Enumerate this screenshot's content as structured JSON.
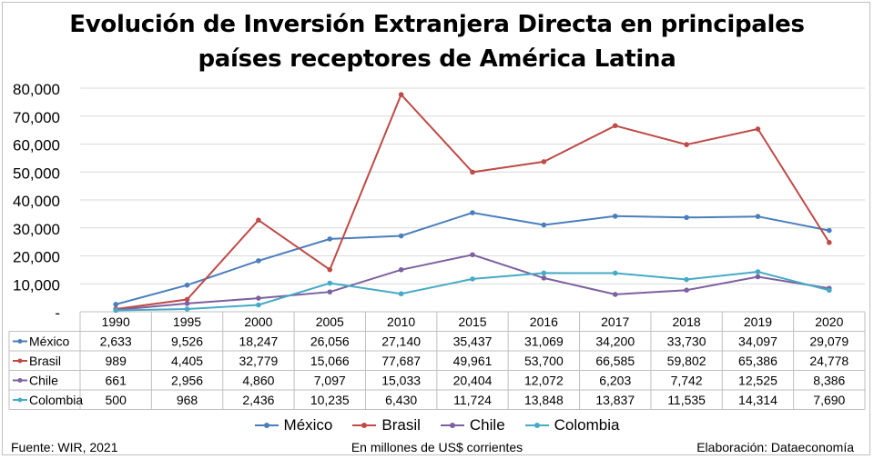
{
  "title_line1": "Evolución de Inversión Extranjera Directa en principales",
  "title_line2": "países receptores de América Latina",
  "footer": {
    "source": "Fuente: WIR, 2021",
    "units": "En millones de US$ corrientes",
    "credit": "Elaboración: Dataeconomía"
  },
  "chart_data": {
    "type": "line",
    "title": "Evolución de Inversión Extranjera Directa en principales países receptores de América Latina",
    "categories": [
      "1990",
      "1995",
      "2000",
      "2005",
      "2010",
      "2015",
      "2016",
      "2017",
      "2018",
      "2019",
      "2020"
    ],
    "ylim": [
      0,
      80000
    ],
    "yticks": [
      "-",
      "10,000",
      "20,000",
      "30,000",
      "40,000",
      "50,000",
      "60,000",
      "70,000",
      "80,000"
    ],
    "grid": true,
    "legend_position": "bottom",
    "data_table": true,
    "series": [
      {
        "name": "México",
        "color": "#4a7ebb",
        "values": [
          2633,
          9526,
          18247,
          26056,
          27140,
          35437,
          31069,
          34200,
          33730,
          34097,
          29079
        ],
        "labels": [
          "2,633",
          "9,526",
          "18,247",
          "26,056",
          "27,140",
          "35,437",
          "31,069",
          "34,200",
          "33,730",
          "34,097",
          "29,079"
        ]
      },
      {
        "name": "Brasil",
        "color": "#be4b48",
        "values": [
          989,
          4405,
          32779,
          15066,
          77687,
          49961,
          53700,
          66585,
          59802,
          65386,
          24778
        ],
        "labels": [
          "989",
          "4,405",
          "32,779",
          "15,066",
          "77,687",
          "49,961",
          "53,700",
          "66,585",
          "59,802",
          "65,386",
          "24,778"
        ]
      },
      {
        "name": "Chile",
        "color": "#7d60a0",
        "values": [
          661,
          2956,
          4860,
          7097,
          15033,
          20404,
          12072,
          6203,
          7742,
          12525,
          8386
        ],
        "labels": [
          "661",
          "2,956",
          "4,860",
          "7,097",
          "15,033",
          "20,404",
          "12,072",
          "6,203",
          "7,742",
          "12,525",
          "8,386"
        ]
      },
      {
        "name": "Colombia",
        "color": "#46aac5",
        "values": [
          500,
          968,
          2436,
          10235,
          6430,
          11724,
          13848,
          13837,
          11535,
          14314,
          7690
        ],
        "labels": [
          "500",
          "968",
          "2,436",
          "10,235",
          "6,430",
          "11,724",
          "13,848",
          "13,837",
          "11,535",
          "14,314",
          "7,690"
        ]
      }
    ]
  }
}
